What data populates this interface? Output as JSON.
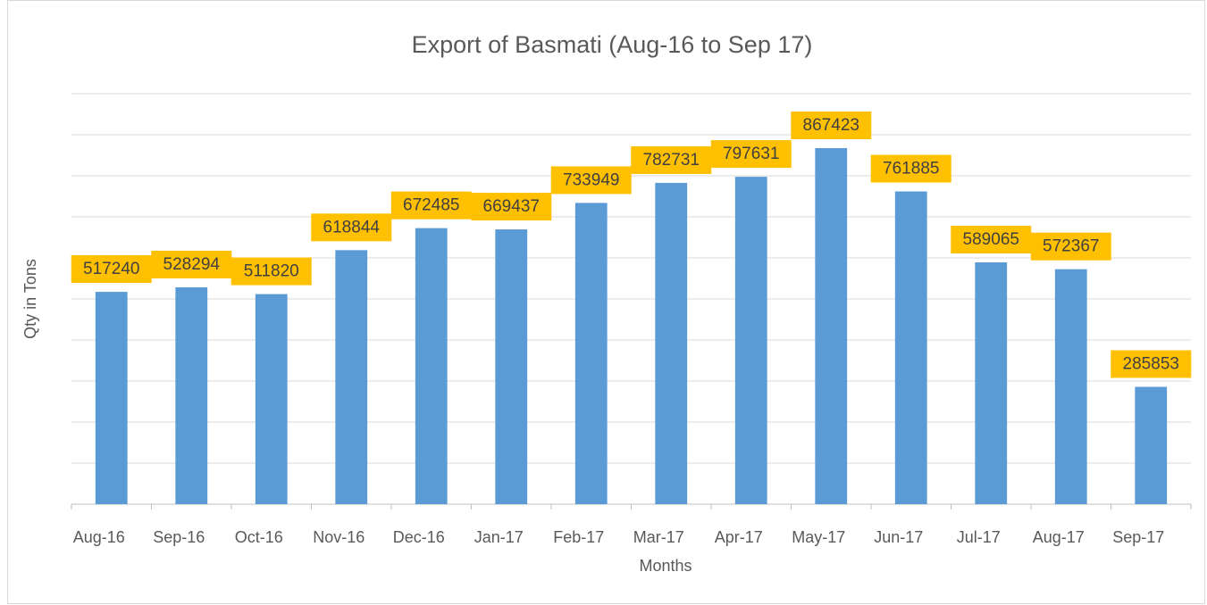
{
  "chart_data": {
    "type": "bar",
    "title": "Export of Basmati (Aug-16 to Sep 17)",
    "x_label": "Months",
    "y_label": "Qty in Tons",
    "categories": [
      "Aug-16",
      "Sep-16",
      "Oct-16",
      "Nov-16",
      "Dec-16",
      "Jan-17",
      "Feb-17",
      "Mar-17",
      "Apr-17",
      "May-17",
      "Jun-17",
      "Jul-17",
      "Aug-17",
      "Sep-17"
    ],
    "values": [
      517240,
      528294,
      511820,
      618844,
      672485,
      669437,
      733949,
      782731,
      797631,
      867423,
      761885,
      589065,
      572367,
      285853
    ],
    "color": "#5b9bd5",
    "label_color": "#ffc000",
    "ylim": [
      0,
      1000000
    ],
    "yticks": [
      0,
      100000,
      200000,
      300000,
      400000,
      500000,
      600000,
      700000,
      800000,
      900000,
      1000000
    ],
    "grid": true
  }
}
